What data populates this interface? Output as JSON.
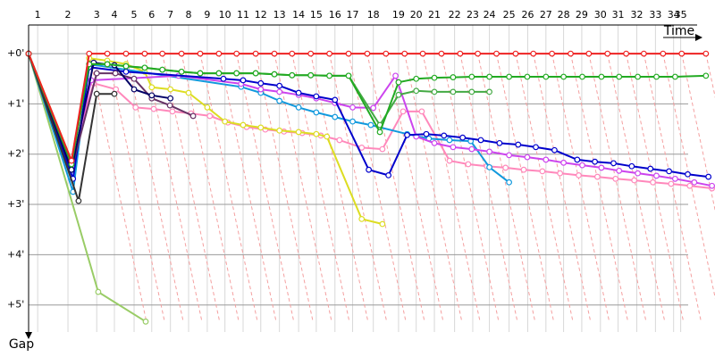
{
  "chart_data": {
    "type": "line",
    "x_label": "Time",
    "y_label": "Gap",
    "xlim": [
      0,
      13.6
    ],
    "ylim": [
      -0.57,
      5.68
    ],
    "xticks": [
      {
        "value": 0.18,
        "label": "1"
      },
      {
        "value": 0.78,
        "label": "2"
      },
      {
        "value": 1.35,
        "label": "3"
      },
      {
        "value": 1.7,
        "label": "4"
      },
      {
        "value": 2.09,
        "label": "5"
      },
      {
        "value": 2.44,
        "label": "6"
      },
      {
        "value": 2.81,
        "label": "7"
      },
      {
        "value": 3.17,
        "label": "8"
      },
      {
        "value": 3.54,
        "label": "9"
      },
      {
        "value": 3.89,
        "label": "10"
      },
      {
        "value": 4.25,
        "label": "11"
      },
      {
        "value": 4.6,
        "label": "12"
      },
      {
        "value": 4.97,
        "label": "13"
      },
      {
        "value": 5.35,
        "label": "14"
      },
      {
        "value": 5.7,
        "label": "15"
      },
      {
        "value": 6.07,
        "label": "16"
      },
      {
        "value": 6.42,
        "label": "17"
      },
      {
        "value": 6.83,
        "label": "18"
      },
      {
        "value": 7.33,
        "label": "19"
      },
      {
        "value": 7.68,
        "label": "20"
      },
      {
        "value": 8.04,
        "label": "21"
      },
      {
        "value": 8.44,
        "label": "22"
      },
      {
        "value": 8.8,
        "label": "23"
      },
      {
        "value": 9.13,
        "label": "24"
      },
      {
        "value": 9.52,
        "label": "25"
      },
      {
        "value": 9.89,
        "label": "26"
      },
      {
        "value": 10.25,
        "label": "27"
      },
      {
        "value": 10.6,
        "label": "28"
      },
      {
        "value": 10.96,
        "label": "29"
      },
      {
        "value": 11.33,
        "label": "30"
      },
      {
        "value": 11.68,
        "label": "31"
      },
      {
        "value": 12.05,
        "label": "32"
      },
      {
        "value": 12.42,
        "label": "33"
      },
      {
        "value": 12.78,
        "label": "34"
      },
      {
        "value": 12.92,
        "label": "35"
      }
    ],
    "yticks": [
      {
        "value": 0,
        "label": "+0'"
      },
      {
        "value": 1,
        "label": "+1'"
      },
      {
        "value": 2,
        "label": "+2'"
      },
      {
        "value": 3,
        "label": "+3'"
      },
      {
        "value": 4,
        "label": "+4'"
      },
      {
        "value": 5,
        "label": "+5'"
      }
    ],
    "grid": true,
    "series": [
      {
        "color": "#99cc66",
        "x": [
          0,
          1.38,
          2.32
        ],
        "values": [
          0,
          4.74,
          5.33
        ]
      },
      {
        "color": "#ff88bb",
        "x": [
          0,
          0.85,
          1.29,
          1.73,
          2.12,
          2.48,
          2.85,
          3.22,
          3.59,
          3.95,
          4.32,
          4.69,
          5.06,
          5.42,
          5.79,
          6.16,
          6.6,
          7.01,
          7.42,
          7.79,
          8.34,
          8.71,
          9.08,
          9.45,
          9.81,
          10.18,
          10.53,
          10.9,
          11.27,
          11.63,
          12.0,
          12.37,
          12.73,
          13.1,
          13.54
        ],
        "values": [
          0,
          2.13,
          0.59,
          0.71,
          1.07,
          1.1,
          1.15,
          1.19,
          1.24,
          1.37,
          1.46,
          1.51,
          1.55,
          1.58,
          1.63,
          1.72,
          1.87,
          1.9,
          1.15,
          1.15,
          2.13,
          2.2,
          2.24,
          2.27,
          2.31,
          2.34,
          2.38,
          2.42,
          2.45,
          2.49,
          2.52,
          2.56,
          2.59,
          2.63,
          2.68
        ]
      },
      {
        "color": "#dddd22",
        "x": [
          0,
          0.85,
          1.2,
          1.56,
          1.93,
          2.3,
          2.44,
          2.81,
          3.17,
          3.54,
          3.89,
          4.25,
          4.6,
          4.97,
          5.35,
          5.7,
          5.91,
          6.6,
          7.01
        ],
        "values": [
          0,
          2.13,
          0.09,
          0.14,
          0.21,
          0.36,
          0.67,
          0.71,
          0.78,
          1.07,
          1.35,
          1.42,
          1.47,
          1.53,
          1.56,
          1.6,
          1.65,
          3.29,
          3.39
        ]
      },
      {
        "color": "#1199dd",
        "x": [
          0,
          0.88,
          1.2,
          4.21,
          4.6,
          4.97,
          5.35,
          5.7,
          6.07,
          6.42,
          6.78,
          7.5,
          7.93,
          8.34,
          8.76,
          9.13,
          9.52
        ],
        "values": [
          0,
          2.75,
          0.21,
          0.66,
          0.78,
          0.94,
          1.07,
          1.17,
          1.26,
          1.35,
          1.42,
          1.6,
          1.69,
          1.72,
          1.74,
          2.26,
          2.56
        ]
      },
      {
        "color": "#cc44ee",
        "x": [
          0,
          0.85,
          1.24,
          2.97,
          4.21,
          4.6,
          4.97,
          5.35,
          5.7,
          6.07,
          6.42,
          6.83,
          7.27,
          7.68,
          8.04,
          8.41,
          8.78,
          9.13,
          9.52,
          9.88,
          10.25,
          10.6,
          10.97,
          11.35,
          11.7,
          12.07,
          12.44,
          12.81,
          13.19,
          13.54
        ],
        "values": [
          0,
          2.31,
          0.53,
          0.44,
          0.6,
          0.71,
          0.76,
          0.82,
          0.89,
          0.98,
          1.07,
          1.08,
          0.44,
          1.65,
          1.78,
          1.86,
          1.9,
          1.95,
          2.02,
          2.06,
          2.11,
          2.17,
          2.22,
          2.27,
          2.33,
          2.38,
          2.43,
          2.49,
          2.56,
          2.63
        ]
      },
      {
        "color": "#0000cc",
        "x": [
          0,
          0.88,
          1.2,
          1.93,
          3.86,
          4.25,
          4.6,
          4.97,
          5.35,
          5.7,
          6.07,
          6.74,
          7.13,
          7.5,
          7.88,
          8.23,
          8.6,
          8.96,
          9.33,
          9.7,
          10.05,
          10.42,
          10.87,
          11.22,
          11.59,
          11.95,
          12.32,
          12.69,
          13.06,
          13.47
        ],
        "values": [
          0,
          2.49,
          0.27,
          0.36,
          0.5,
          0.53,
          0.59,
          0.64,
          0.78,
          0.85,
          0.92,
          2.31,
          2.42,
          1.62,
          1.6,
          1.63,
          1.67,
          1.72,
          1.78,
          1.81,
          1.86,
          1.92,
          2.11,
          2.15,
          2.18,
          2.24,
          2.29,
          2.34,
          2.4,
          2.45
        ]
      },
      {
        "color": "#663366",
        "x": [
          0,
          0.85,
          1.35,
          1.72,
          2.09,
          2.44,
          2.8,
          3.26
        ],
        "values": [
          0,
          2.31,
          0.39,
          0.39,
          0.5,
          0.89,
          1.03,
          1.24
        ]
      },
      {
        "color": "#000066",
        "x": [
          0,
          0.85,
          1.29,
          1.7,
          2.09,
          2.44,
          2.81
        ],
        "values": [
          0,
          2.31,
          0.18,
          0.23,
          0.71,
          0.83,
          0.89
        ]
      },
      {
        "color": "#333333",
        "x": [
          0,
          0.99,
          1.35,
          1.7
        ],
        "values": [
          0,
          2.93,
          0.8,
          0.8
        ]
      },
      {
        "color": "#44aa44",
        "x": [
          0,
          0.85,
          1.2,
          1.56,
          1.93,
          2.3,
          2.65,
          3.03,
          3.4,
          3.77,
          4.12,
          4.5,
          4.87,
          5.22,
          5.59,
          5.96,
          6.34,
          6.96,
          7.33,
          7.68,
          8.04,
          8.41,
          8.78,
          9.13
        ],
        "values": [
          0,
          2.2,
          0.21,
          0.21,
          0.25,
          0.28,
          0.32,
          0.36,
          0.39,
          0.39,
          0.39,
          0.39,
          0.41,
          0.43,
          0.43,
          0.44,
          0.44,
          1.42,
          0.82,
          0.74,
          0.76,
          0.76,
          0.76,
          0.76
        ]
      },
      {
        "color": "#22aa22",
        "x": [
          0,
          0.85,
          1.2,
          1.56,
          1.93,
          2.3,
          2.65,
          3.03,
          3.4,
          3.77,
          4.12,
          4.5,
          4.87,
          5.22,
          5.59,
          5.96,
          6.34,
          6.96,
          7.33,
          7.68,
          8.04,
          8.41,
          8.78,
          9.13,
          9.52,
          9.88,
          10.25,
          10.6,
          10.97,
          11.35,
          11.7,
          12.07,
          12.44,
          12.81,
          13.42
        ],
        "values": [
          0,
          2.2,
          0.21,
          0.21,
          0.25,
          0.28,
          0.32,
          0.36,
          0.39,
          0.39,
          0.39,
          0.39,
          0.41,
          0.43,
          0.43,
          0.44,
          0.44,
          1.56,
          0.57,
          0.5,
          0.48,
          0.47,
          0.46,
          0.46,
          0.46,
          0.46,
          0.46,
          0.46,
          0.46,
          0.46,
          0.46,
          0.46,
          0.46,
          0.46,
          0.44
        ]
      },
      {
        "color": "#ee2222",
        "x": [
          0,
          0.85,
          1.2,
          1.56,
          1.93,
          2.3,
          2.65,
          3.03,
          3.4,
          3.77,
          4.12,
          4.5,
          4.87,
          5.22,
          5.59,
          5.96,
          6.34,
          6.71,
          7.08,
          7.45,
          7.81,
          8.18,
          8.55,
          8.9,
          9.27,
          9.65,
          10.0,
          10.37,
          10.74,
          11.1,
          11.47,
          11.84,
          12.19,
          12.57,
          12.94,
          13.42
        ],
        "values": [
          0,
          2.13,
          0,
          0,
          0,
          0,
          0,
          0,
          0,
          0,
          0,
          0,
          0,
          0,
          0,
          0,
          0,
          0,
          0,
          0,
          0,
          0,
          0,
          0,
          0,
          0,
          0,
          0,
          0,
          0,
          0,
          0,
          0,
          0,
          0,
          0
        ]
      }
    ]
  }
}
